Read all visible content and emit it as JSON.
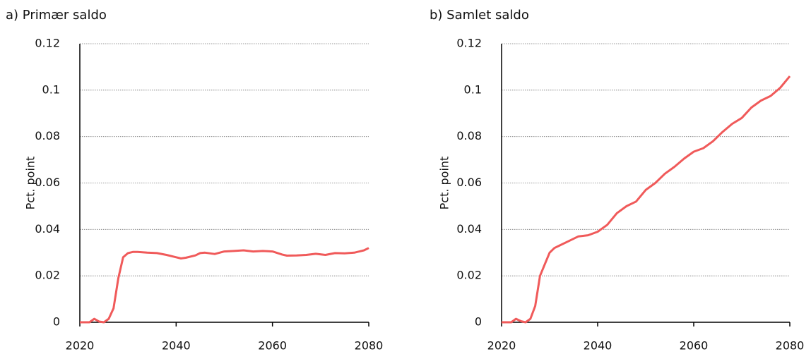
{
  "chart_data": [
    {
      "type": "line",
      "title": "a) Primær saldo",
      "y_label": "Pct. point",
      "color": "#f05a5a",
      "x": [
        2020,
        2021,
        2022,
        2023,
        2024,
        2025,
        2026,
        2027,
        2028,
        2029,
        2030,
        2031,
        2032,
        2034,
        2036,
        2038,
        2040,
        2041,
        2042,
        2044,
        2045,
        2046,
        2048,
        2050,
        2052,
        2054,
        2056,
        2058,
        2060,
        2062,
        2063,
        2065,
        2067,
        2069,
        2071,
        2073,
        2075,
        2077,
        2079,
        2080
      ],
      "values": [
        0,
        0,
        0,
        0.0015,
        0.0003,
        0,
        0.0015,
        0.006,
        0.019,
        0.028,
        0.0298,
        0.0303,
        0.0303,
        0.03,
        0.0298,
        0.029,
        0.028,
        0.0275,
        0.0278,
        0.0288,
        0.0298,
        0.03,
        0.0294,
        0.0305,
        0.0307,
        0.031,
        0.0305,
        0.0307,
        0.0305,
        0.0292,
        0.0287,
        0.0288,
        0.029,
        0.0295,
        0.029,
        0.0298,
        0.0297,
        0.03,
        0.031,
        0.032
      ],
      "xlim": [
        2020,
        2080
      ],
      "xticks": [
        2020,
        2040,
        2060,
        2080
      ],
      "ylim": [
        0,
        0.12
      ],
      "yticks": [
        0,
        0.02,
        0.04,
        0.06,
        0.08,
        0.1,
        0.12
      ],
      "grid": true
    },
    {
      "type": "line",
      "title": "b) Samlet saldo",
      "y_label": "Pct. point",
      "color": "#f05a5a",
      "x": [
        2020,
        2021,
        2022,
        2023,
        2024,
        2025,
        2026,
        2027,
        2028,
        2029,
        2030,
        2031,
        2032,
        2034,
        2036,
        2038,
        2040,
        2042,
        2044,
        2046,
        2048,
        2050,
        2052,
        2054,
        2056,
        2058,
        2060,
        2062,
        2064,
        2066,
        2068,
        2070,
        2072,
        2074,
        2076,
        2078,
        2080
      ],
      "values": [
        0,
        0,
        0,
        0.0015,
        0.0005,
        0,
        0.0015,
        0.007,
        0.02,
        0.025,
        0.03,
        0.032,
        0.033,
        0.035,
        0.037,
        0.0375,
        0.039,
        0.042,
        0.047,
        0.05,
        0.052,
        0.057,
        0.06,
        0.064,
        0.067,
        0.0705,
        0.0735,
        0.075,
        0.078,
        0.082,
        0.0855,
        0.088,
        0.0925,
        0.0955,
        0.0975,
        0.101,
        0.106
      ],
      "xlim": [
        2020,
        2080
      ],
      "xticks": [
        2020,
        2040,
        2060,
        2080
      ],
      "ylim": [
        0,
        0.12
      ],
      "yticks": [
        0,
        0.02,
        0.04,
        0.06,
        0.08,
        0.1,
        0.12
      ],
      "grid": true
    }
  ]
}
